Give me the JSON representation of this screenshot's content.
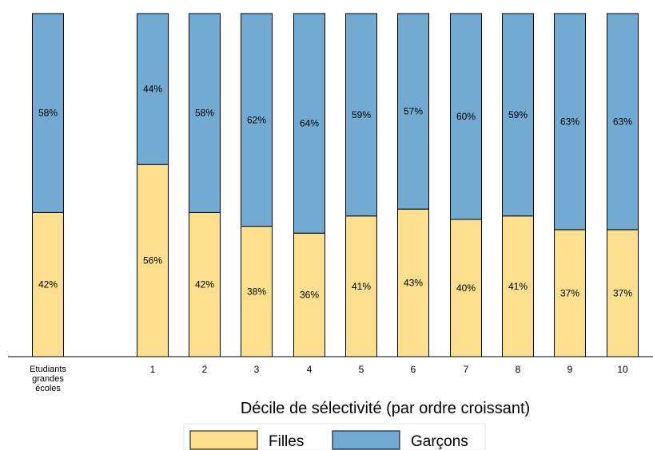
{
  "chart_data": {
    "type": "bar",
    "stacked": true,
    "percent_stacked": true,
    "xlabel": "Décile de sélectivité (par ordre croissant)",
    "ylabel": "",
    "ylim": [
      0,
      100
    ],
    "grid": false,
    "legend_position": "bottom-center",
    "first_category_label_lines": [
      "Etudiants",
      "grandes",
      "écoles"
    ],
    "categories": [
      "Etudiants grandes écoles",
      "1",
      "2",
      "3",
      "4",
      "5",
      "6",
      "7",
      "8",
      "9",
      "10"
    ],
    "series": [
      {
        "name": "Filles",
        "color": "#fbdf8f",
        "values": [
          42,
          56,
          42,
          38,
          36,
          41,
          43,
          40,
          41,
          37,
          37
        ],
        "labels": [
          "42%",
          "56%",
          "42%",
          "38%",
          "36%",
          "41%",
          "43%",
          "40%",
          "41%",
          "37%",
          "37%"
        ]
      },
      {
        "name": "Garçons",
        "color": "#72aad3",
        "values": [
          58,
          44,
          58,
          62,
          64,
          59,
          57,
          60,
          59,
          63,
          63
        ],
        "labels": [
          "58%",
          "44%",
          "58%",
          "62%",
          "64%",
          "59%",
          "57%",
          "60%",
          "59%",
          "63%",
          "63%"
        ]
      }
    ]
  }
}
